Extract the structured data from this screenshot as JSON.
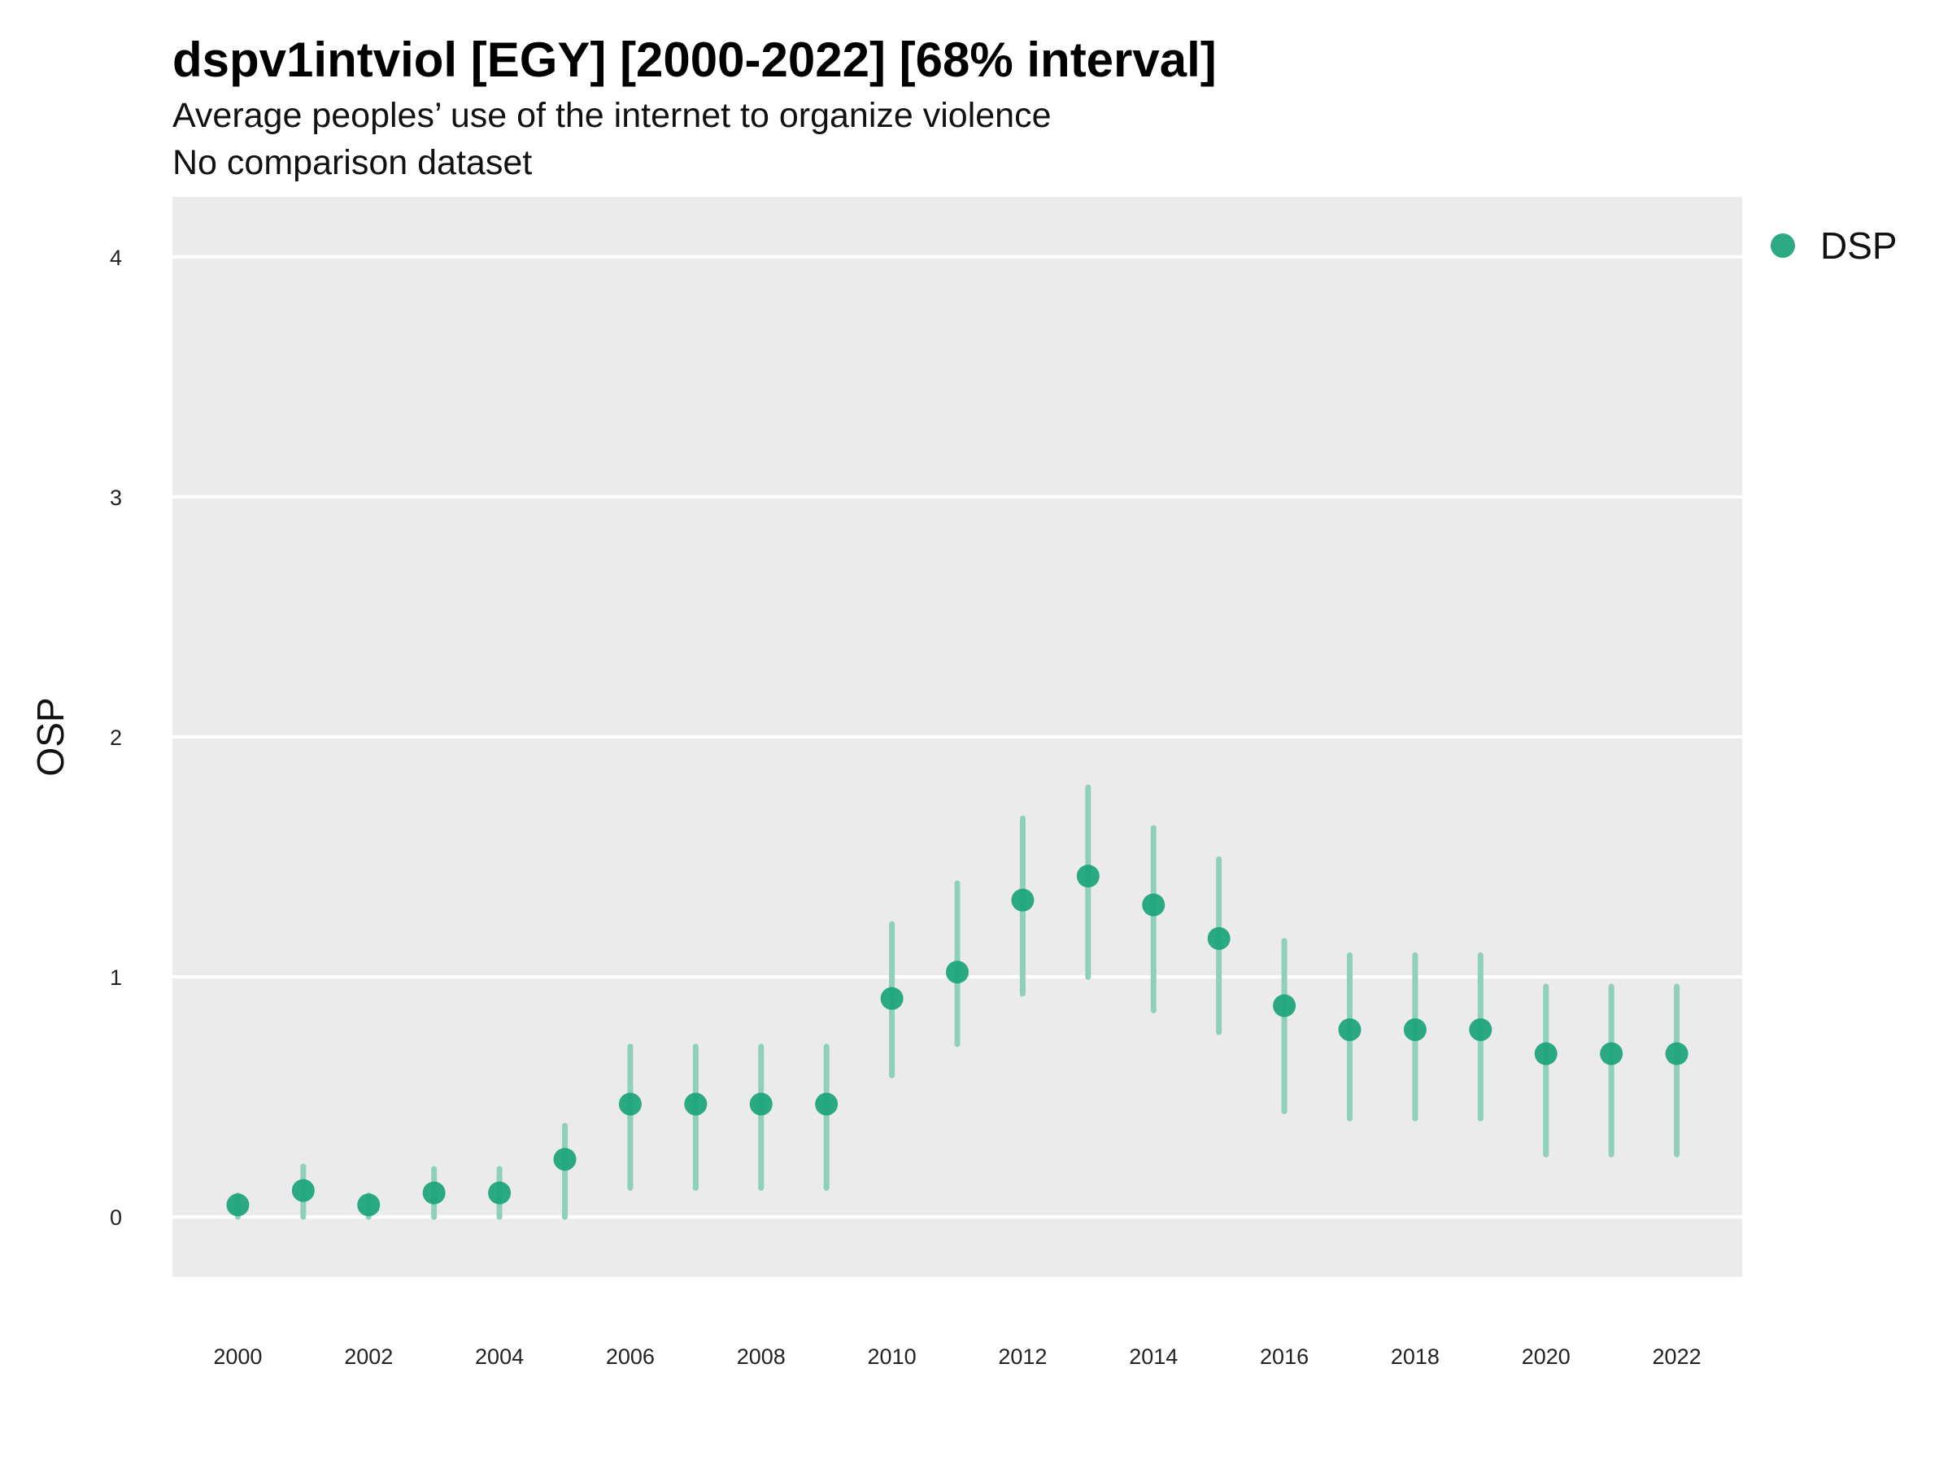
{
  "title": "dspv1intviol [EGY] [2000-2022] [68% interval]",
  "subtitle": "Average peoples’ use of the internet to organize violence",
  "subtitle2": "No comparison dataset",
  "chart_data": {
    "type": "scatter",
    "title": "dspv1intviol [EGY] [2000-2022] [68% interval]",
    "subtitle": "Average peoples’ use of the internet to organize violence",
    "xlabel": "",
    "ylabel": "OSP",
    "xlim": [
      1999.0,
      2023.0
    ],
    "ylim": [
      -0.25,
      4.25
    ],
    "x_ticks": [
      2000,
      2002,
      2004,
      2006,
      2008,
      2010,
      2012,
      2014,
      2016,
      2018,
      2020,
      2022
    ],
    "y_ticks": [
      0,
      1,
      2,
      3,
      4
    ],
    "grid": true,
    "legend_position": "top-right",
    "colors": {
      "series": "#1aa37a",
      "interval": "#8fd0b8",
      "panel": "#ebebeb",
      "grid": "#ffffff"
    },
    "series": [
      {
        "name": "DSP",
        "x": [
          2000,
          2001,
          2002,
          2003,
          2004,
          2005,
          2006,
          2007,
          2008,
          2009,
          2010,
          2011,
          2012,
          2013,
          2014,
          2015,
          2016,
          2017,
          2018,
          2019,
          2020,
          2021,
          2022
        ],
        "y": [
          0.05,
          0.11,
          0.05,
          0.1,
          0.1,
          0.24,
          0.47,
          0.47,
          0.47,
          0.47,
          0.91,
          1.02,
          1.32,
          1.42,
          1.3,
          1.16,
          0.88,
          0.78,
          0.78,
          0.78,
          0.68,
          0.68,
          0.68
        ],
        "lower": [
          0.0,
          0.0,
          0.0,
          0.0,
          0.0,
          0.0,
          0.12,
          0.12,
          0.12,
          0.12,
          0.59,
          0.72,
          0.93,
          1.0,
          0.86,
          0.77,
          0.44,
          0.41,
          0.41,
          0.41,
          0.26,
          0.26,
          0.26
        ],
        "upper": [
          0.09,
          0.21,
          0.09,
          0.2,
          0.2,
          0.38,
          0.71,
          0.71,
          0.71,
          0.71,
          1.22,
          1.39,
          1.66,
          1.79,
          1.62,
          1.49,
          1.15,
          1.09,
          1.09,
          1.09,
          0.96,
          0.96,
          0.96
        ]
      }
    ]
  }
}
